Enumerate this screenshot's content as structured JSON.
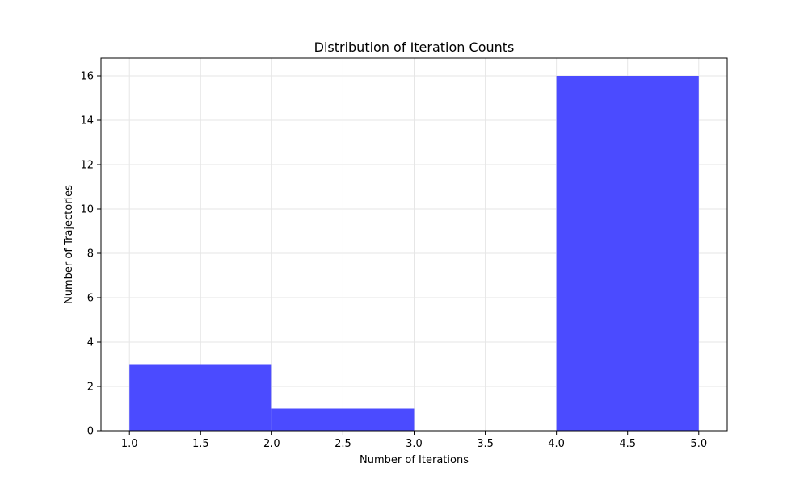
{
  "chart_data": {
    "type": "bar",
    "title": "Distribution of Iteration Counts",
    "xlabel": "Number of Iterations",
    "ylabel": "Number of Trajectories",
    "bin_edges": [
      1.0,
      2.0,
      3.0,
      4.0,
      5.0
    ],
    "values": [
      3,
      1,
      0,
      16
    ],
    "xlim": [
      0.8,
      5.2
    ],
    "ylim": [
      0,
      16.8
    ],
    "xticks": [
      "1.0",
      "1.5",
      "2.0",
      "2.5",
      "3.0",
      "3.5",
      "4.0",
      "4.5",
      "5.0"
    ],
    "yticks": [
      "0",
      "2",
      "4",
      "6",
      "8",
      "10",
      "12",
      "14",
      "16"
    ],
    "grid": true,
    "legend": "none",
    "bar_color": "#4b4bff",
    "grid_color": "#e6e6e6"
  }
}
